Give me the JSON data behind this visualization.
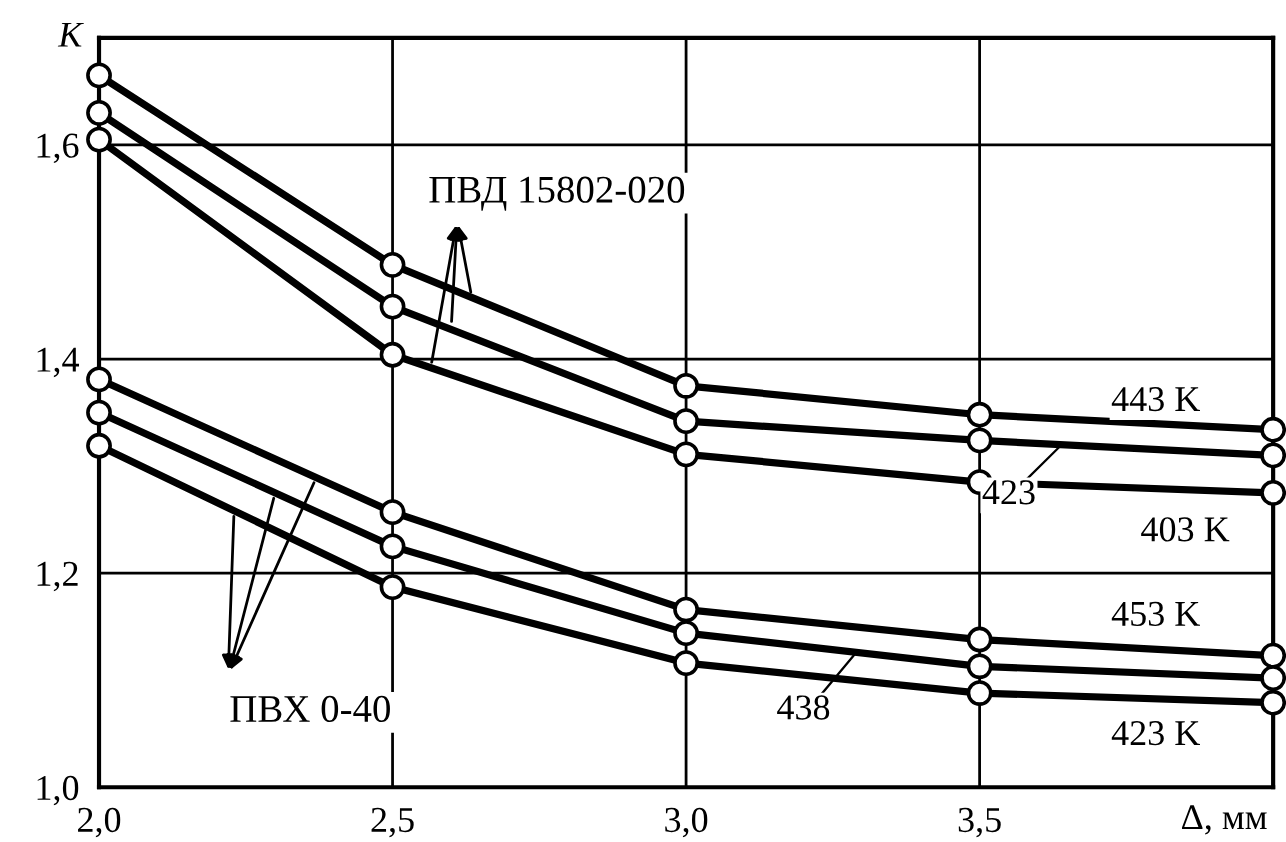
{
  "chart_data": {
    "type": "line",
    "xlabel": "Δ, мм",
    "ylabel": "K",
    "x": [
      2.0,
      2.5,
      3.0,
      3.5,
      4.0
    ],
    "xlim": [
      2.0,
      4.0
    ],
    "ylim": [
      1.0,
      1.7
    ],
    "xticks": [
      {
        "value": 2.0,
        "label": "2,0"
      },
      {
        "value": 2.5,
        "label": "2,5"
      },
      {
        "value": 3.0,
        "label": "3,0"
      },
      {
        "value": 3.5,
        "label": "3,5"
      }
    ],
    "yticks": [
      {
        "value": 1.0,
        "label": "1,0"
      },
      {
        "value": 1.2,
        "label": "1,2"
      },
      {
        "value": 1.4,
        "label": "1,4"
      },
      {
        "value": 1.6,
        "label": "1,6"
      }
    ],
    "grid": true,
    "marker": "circle",
    "line_style": "solid",
    "legend": "right",
    "series": [
      {
        "name": "443 K",
        "color": "#000000",
        "values": [
          1.665,
          1.488,
          1.375,
          1.348,
          1.334
        ]
      },
      {
        "name": "423",
        "color": "#000000",
        "values": [
          1.63,
          1.449,
          1.342,
          1.324,
          1.31
        ]
      },
      {
        "name": "403 K",
        "color": "#000000",
        "values": [
          1.605,
          1.404,
          1.311,
          1.285,
          1.275
        ]
      },
      {
        "name": "453 K",
        "color": "#000000",
        "values": [
          1.381,
          1.257,
          1.166,
          1.138,
          1.123
        ]
      },
      {
        "name": "438",
        "color": "#000000",
        "values": [
          1.35,
          1.225,
          1.144,
          1.113,
          1.102
        ]
      },
      {
        "name": "423 K",
        "color": "#000000",
        "values": [
          1.319,
          1.187,
          1.116,
          1.088,
          1.079
        ]
      }
    ],
    "annotations": [
      {
        "text": "ПВД 15802-020",
        "x": 2.6,
        "y": 1.43
      },
      {
        "text": "ПВХ 0-40",
        "x": 2.3,
        "y": 1.275
      }
    ]
  }
}
